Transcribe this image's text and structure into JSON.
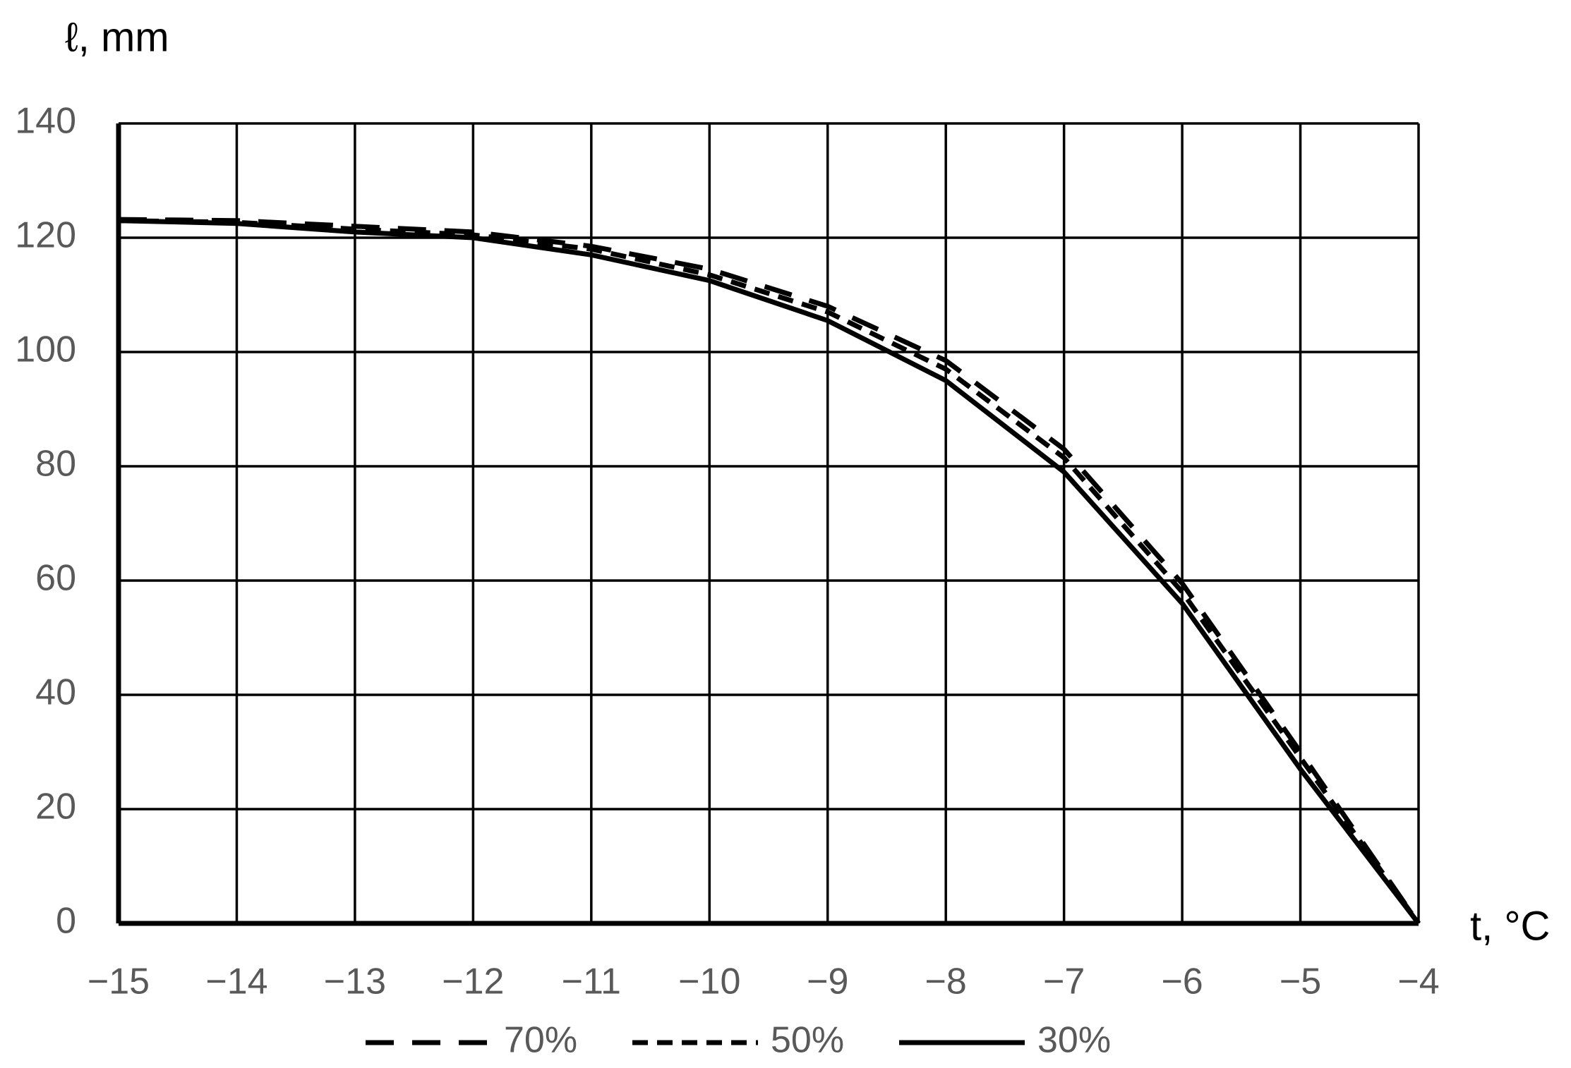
{
  "chart_data": {
    "type": "line",
    "x_label": "t, °C",
    "y_label": "ℓ, mm",
    "x": [
      -15,
      -14,
      -13,
      -12,
      -11,
      -10,
      -9,
      -8,
      -7,
      -6,
      -5,
      -4
    ],
    "xlim": [
      -15,
      -4
    ],
    "xticks": [
      {
        "value": -15,
        "label": "−15"
      },
      {
        "value": -14,
        "label": "−14"
      },
      {
        "value": -13,
        "label": "−13"
      },
      {
        "value": -12,
        "label": "−12"
      },
      {
        "value": -11,
        "label": "−11"
      },
      {
        "value": -10,
        "label": "−10"
      },
      {
        "value": -9,
        "label": "−9"
      },
      {
        "value": -8,
        "label": "−8"
      },
      {
        "value": -7,
        "label": "−7"
      },
      {
        "value": -6,
        "label": "−6"
      },
      {
        "value": -5,
        "label": "−5"
      },
      {
        "value": -4,
        "label": "−4"
      }
    ],
    "ylim": [
      0,
      140
    ],
    "yticks": [
      0,
      20,
      40,
      60,
      80,
      100,
      120,
      140
    ],
    "grid": true,
    "legend": "bottom",
    "series": [
      {
        "name": "70%",
        "color": "#000000",
        "line_style": "long-dash",
        "values": [
          123.2,
          123,
          122,
          121,
          118.5,
          114.5,
          108,
          98.5,
          83,
          59.5,
          30,
          0
        ]
      },
      {
        "name": "50%",
        "color": "#000000",
        "line_style": "short-dash",
        "values": [
          123,
          122.7,
          121.5,
          120.5,
          118,
          113.5,
          107,
          97,
          81.5,
          58,
          29,
          0
        ]
      },
      {
        "name": "30%",
        "color": "#000000",
        "line_style": "solid",
        "values": [
          123,
          122.5,
          121,
          120,
          117,
          112.5,
          105.5,
          95,
          79,
          56,
          27,
          0
        ]
      }
    ]
  }
}
